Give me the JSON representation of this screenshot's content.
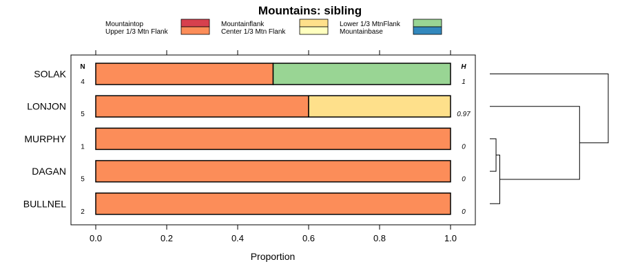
{
  "chart_data": {
    "type": "bar",
    "orientation": "horizontal",
    "stacked": true,
    "title": "Mountains: sibling",
    "xlabel": "Proportion",
    "ylabel": "",
    "xlim": [
      0,
      1
    ],
    "x_ticks": [
      "0.0",
      "0.2",
      "0.4",
      "0.6",
      "0.8",
      "1.0"
    ],
    "n_header": "N",
    "h_header": "H",
    "categories": [
      "SOLAK",
      "LONJON",
      "MURPHY",
      "DAGAN",
      "BULLNEL"
    ],
    "n": [
      "4",
      "5",
      "1",
      "5",
      "2"
    ],
    "h": [
      "1",
      "0.97",
      "0",
      "0",
      "0"
    ],
    "legend": [
      {
        "name": "Mountaintop",
        "color": "#d7404e"
      },
      {
        "name": "Upper 1/3 Mtn Flank",
        "color": "#fc8d59"
      },
      {
        "name": "Mountainflank",
        "color": "#fee08b"
      },
      {
        "name": "Center 1/3 Mtn Flank",
        "color": "#ffffbf"
      },
      {
        "name": "Lower 1/3 MtnFlank",
        "color": "#99d594"
      },
      {
        "name": "Mountainbase",
        "color": "#3288bd"
      }
    ],
    "series": [
      {
        "name": "Mountaintop",
        "values": [
          0,
          0,
          0,
          0,
          0
        ]
      },
      {
        "name": "Upper 1/3 Mtn Flank",
        "values": [
          0.5,
          0.6,
          1.0,
          1.0,
          1.0
        ]
      },
      {
        "name": "Mountainflank",
        "values": [
          0,
          0.4,
          0,
          0,
          0
        ]
      },
      {
        "name": "Center 1/3 Mtn Flank",
        "values": [
          0,
          0,
          0,
          0,
          0
        ]
      },
      {
        "name": "Lower 1/3 MtnFlank",
        "values": [
          0.5,
          0,
          0,
          0,
          0
        ]
      },
      {
        "name": "Mountainbase",
        "values": [
          0,
          0,
          0,
          0,
          0
        ]
      }
    ],
    "dendrogram": {
      "leaves": [
        "SOLAK",
        "LONJON",
        "MURPHY",
        "DAGAN",
        "BULLNEL"
      ],
      "merges": [
        {
          "a": "MURPHY",
          "b": "DAGAN",
          "height": 0.05
        },
        {
          "a": "M1",
          "b": "BULLNEL",
          "height": 0.08
        },
        {
          "a": "LONJON",
          "b": "M2",
          "height": 0.72
        },
        {
          "a": "SOLAK",
          "b": "M3",
          "height": 0.95
        }
      ]
    }
  }
}
